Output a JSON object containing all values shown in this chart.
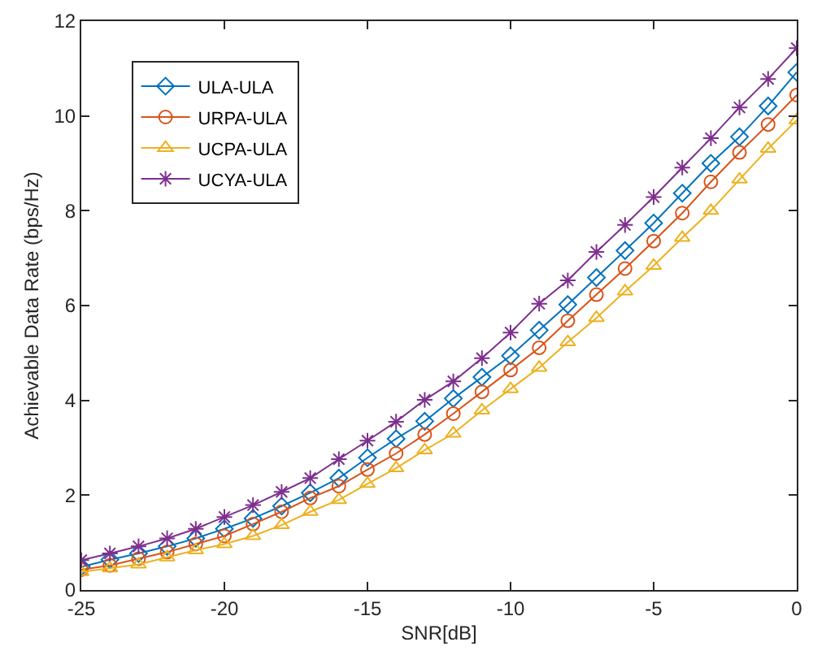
{
  "chart_data": {
    "type": "line",
    "xlabel": "SNR[dB]",
    "ylabel": "Achievable Data Rate (bps/Hz)",
    "x": [
      -25,
      -24,
      -23,
      -22,
      -21,
      -20,
      -19,
      -18,
      -17,
      -16,
      -15,
      -14,
      -13,
      -12,
      -11,
      -10,
      -9,
      -8,
      -7,
      -6,
      -5,
      -4,
      -3,
      -2,
      -1,
      0
    ],
    "series": [
      {
        "name": "ULA-ULA",
        "color": "#0072bd",
        "marker": "diamond",
        "values": [
          0.49,
          0.64,
          0.77,
          0.92,
          1.09,
          1.29,
          1.51,
          1.77,
          2.05,
          2.36,
          2.79,
          3.19,
          3.56,
          4.04,
          4.49,
          4.94,
          5.48,
          6.02,
          6.59,
          7.16,
          7.74,
          8.37,
          9.0,
          9.56,
          10.21,
          10.92
        ]
      },
      {
        "name": "URPA-ULA",
        "color": "#d95319",
        "marker": "circle",
        "values": [
          0.43,
          0.52,
          0.66,
          0.8,
          0.97,
          1.14,
          1.39,
          1.65,
          1.94,
          2.19,
          2.54,
          2.88,
          3.28,
          3.72,
          4.18,
          4.64,
          5.11,
          5.68,
          6.23,
          6.78,
          7.36,
          7.95,
          8.61,
          9.23,
          9.82,
          10.44
        ]
      },
      {
        "name": "UCPA-ULA",
        "color": "#edb120",
        "marker": "triangle",
        "values": [
          0.38,
          0.46,
          0.54,
          0.69,
          0.84,
          0.97,
          1.14,
          1.37,
          1.65,
          1.9,
          2.24,
          2.57,
          2.95,
          3.3,
          3.79,
          4.24,
          4.69,
          5.23,
          5.74,
          6.3,
          6.84,
          7.43,
          8.0,
          8.66,
          9.31,
          9.91
        ]
      },
      {
        "name": "UCYA-ULA",
        "color": "#7e2f8e",
        "marker": "cross",
        "values": [
          0.63,
          0.77,
          0.92,
          1.09,
          1.29,
          1.54,
          1.79,
          2.07,
          2.36,
          2.76,
          3.15,
          3.55,
          4.01,
          4.4,
          4.89,
          5.43,
          6.04,
          6.53,
          7.13,
          7.7,
          8.29,
          8.91,
          9.53,
          10.18,
          10.78,
          11.43
        ]
      }
    ],
    "xlim": [
      -25,
      0
    ],
    "xticks": [
      -25,
      -20,
      -15,
      -10,
      -5,
      0
    ],
    "ylim": [
      0,
      12
    ],
    "yticks": [
      0,
      2,
      4,
      6,
      8,
      10,
      12
    ],
    "grid": false,
    "legend": "top left",
    "line_style": "solid"
  }
}
